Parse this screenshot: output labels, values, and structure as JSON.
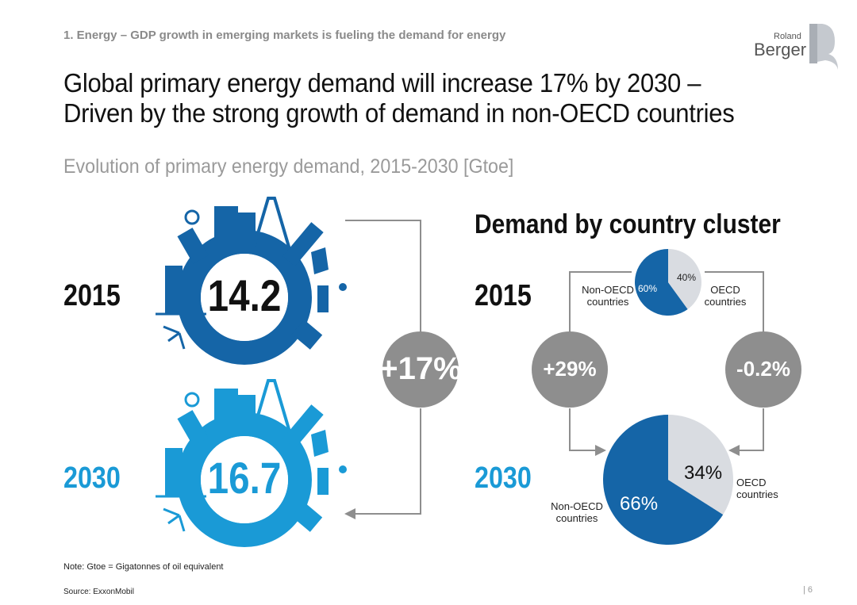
{
  "header": {
    "kicker": "1. Energy – GDP growth in emerging markets is fueling the demand for energy",
    "headline_line1": "Global primary energy demand will increase 17% by 2030 –",
    "headline_line2": "Driven by the strong growth of demand in non-OECD countries",
    "subtitle": "Evolution of primary energy demand, 2015-2030 [Gtoe]",
    "logo_small": "Roland",
    "logo_big": "Berger"
  },
  "colors": {
    "dark_blue": "#1565a7",
    "light_blue": "#1a9ad6",
    "grey": "#8e8e8e",
    "light_grey": "#d9dce1"
  },
  "left_panel": {
    "year_2015": "2015",
    "year_2030": "2030",
    "total_2015": "14.2",
    "total_2030": "16.7",
    "growth": "+17%"
  },
  "right_panel": {
    "title": "Demand by country cluster",
    "year_2015": "2015",
    "year_2030": "2030",
    "non_oecd_growth": "+29%",
    "oecd_growth": "-0.2%",
    "label_non_oecd_line1": "Non-OECD",
    "label_oecd_line1": "OECD",
    "label_countries": "countries"
  },
  "chart_data": [
    {
      "type": "pie",
      "title": "2015",
      "categories": [
        "Non-OECD countries",
        "OECD countries"
      ],
      "values": [
        60,
        40
      ],
      "labels": [
        "60%",
        "40%"
      ]
    },
    {
      "type": "pie",
      "title": "2030",
      "categories": [
        "Non-OECD countries",
        "OECD countries"
      ],
      "values": [
        66,
        34
      ],
      "labels": [
        "66%",
        "34%"
      ]
    }
  ],
  "footer": {
    "note": "Note: Gtoe = Gigatonnes of oil equivalent",
    "source": "Source: ExxonMobil",
    "page": "| 6"
  }
}
